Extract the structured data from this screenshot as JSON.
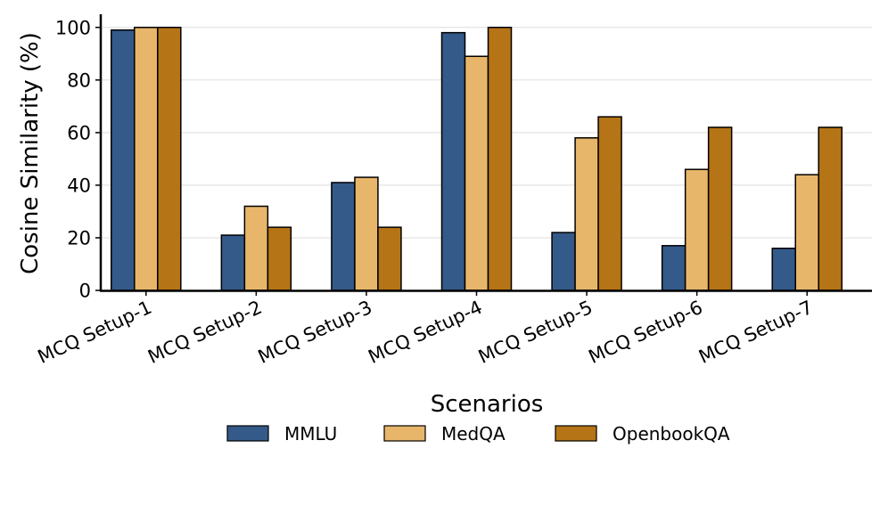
{
  "chart_data": {
    "type": "bar",
    "categories": [
      "MCQ Setup-1",
      "MCQ Setup-2",
      "MCQ Setup-3",
      "MCQ Setup-4",
      "MCQ Setup-5",
      "MCQ Setup-6",
      "MCQ Setup-7"
    ],
    "series": [
      {
        "name": "MMLU",
        "color": "#345a8a",
        "values": [
          99,
          21,
          41,
          98,
          22,
          17,
          16
        ]
      },
      {
        "name": "MedQA",
        "color": "#e8b66b",
        "values": [
          100,
          32,
          43,
          89,
          58,
          46,
          44
        ]
      },
      {
        "name": "OpenbookQA",
        "color": "#b57415",
        "values": [
          100,
          24,
          24,
          100,
          66,
          62,
          62
        ]
      }
    ],
    "xlabel": "Scenarios",
    "ylabel": "Cosine Similarity (%)",
    "ylim": [
      0,
      105
    ],
    "yticks": [
      0,
      20,
      40,
      60,
      80,
      100
    ],
    "grid": "horizontal",
    "legend_position": "bottom-center"
  }
}
